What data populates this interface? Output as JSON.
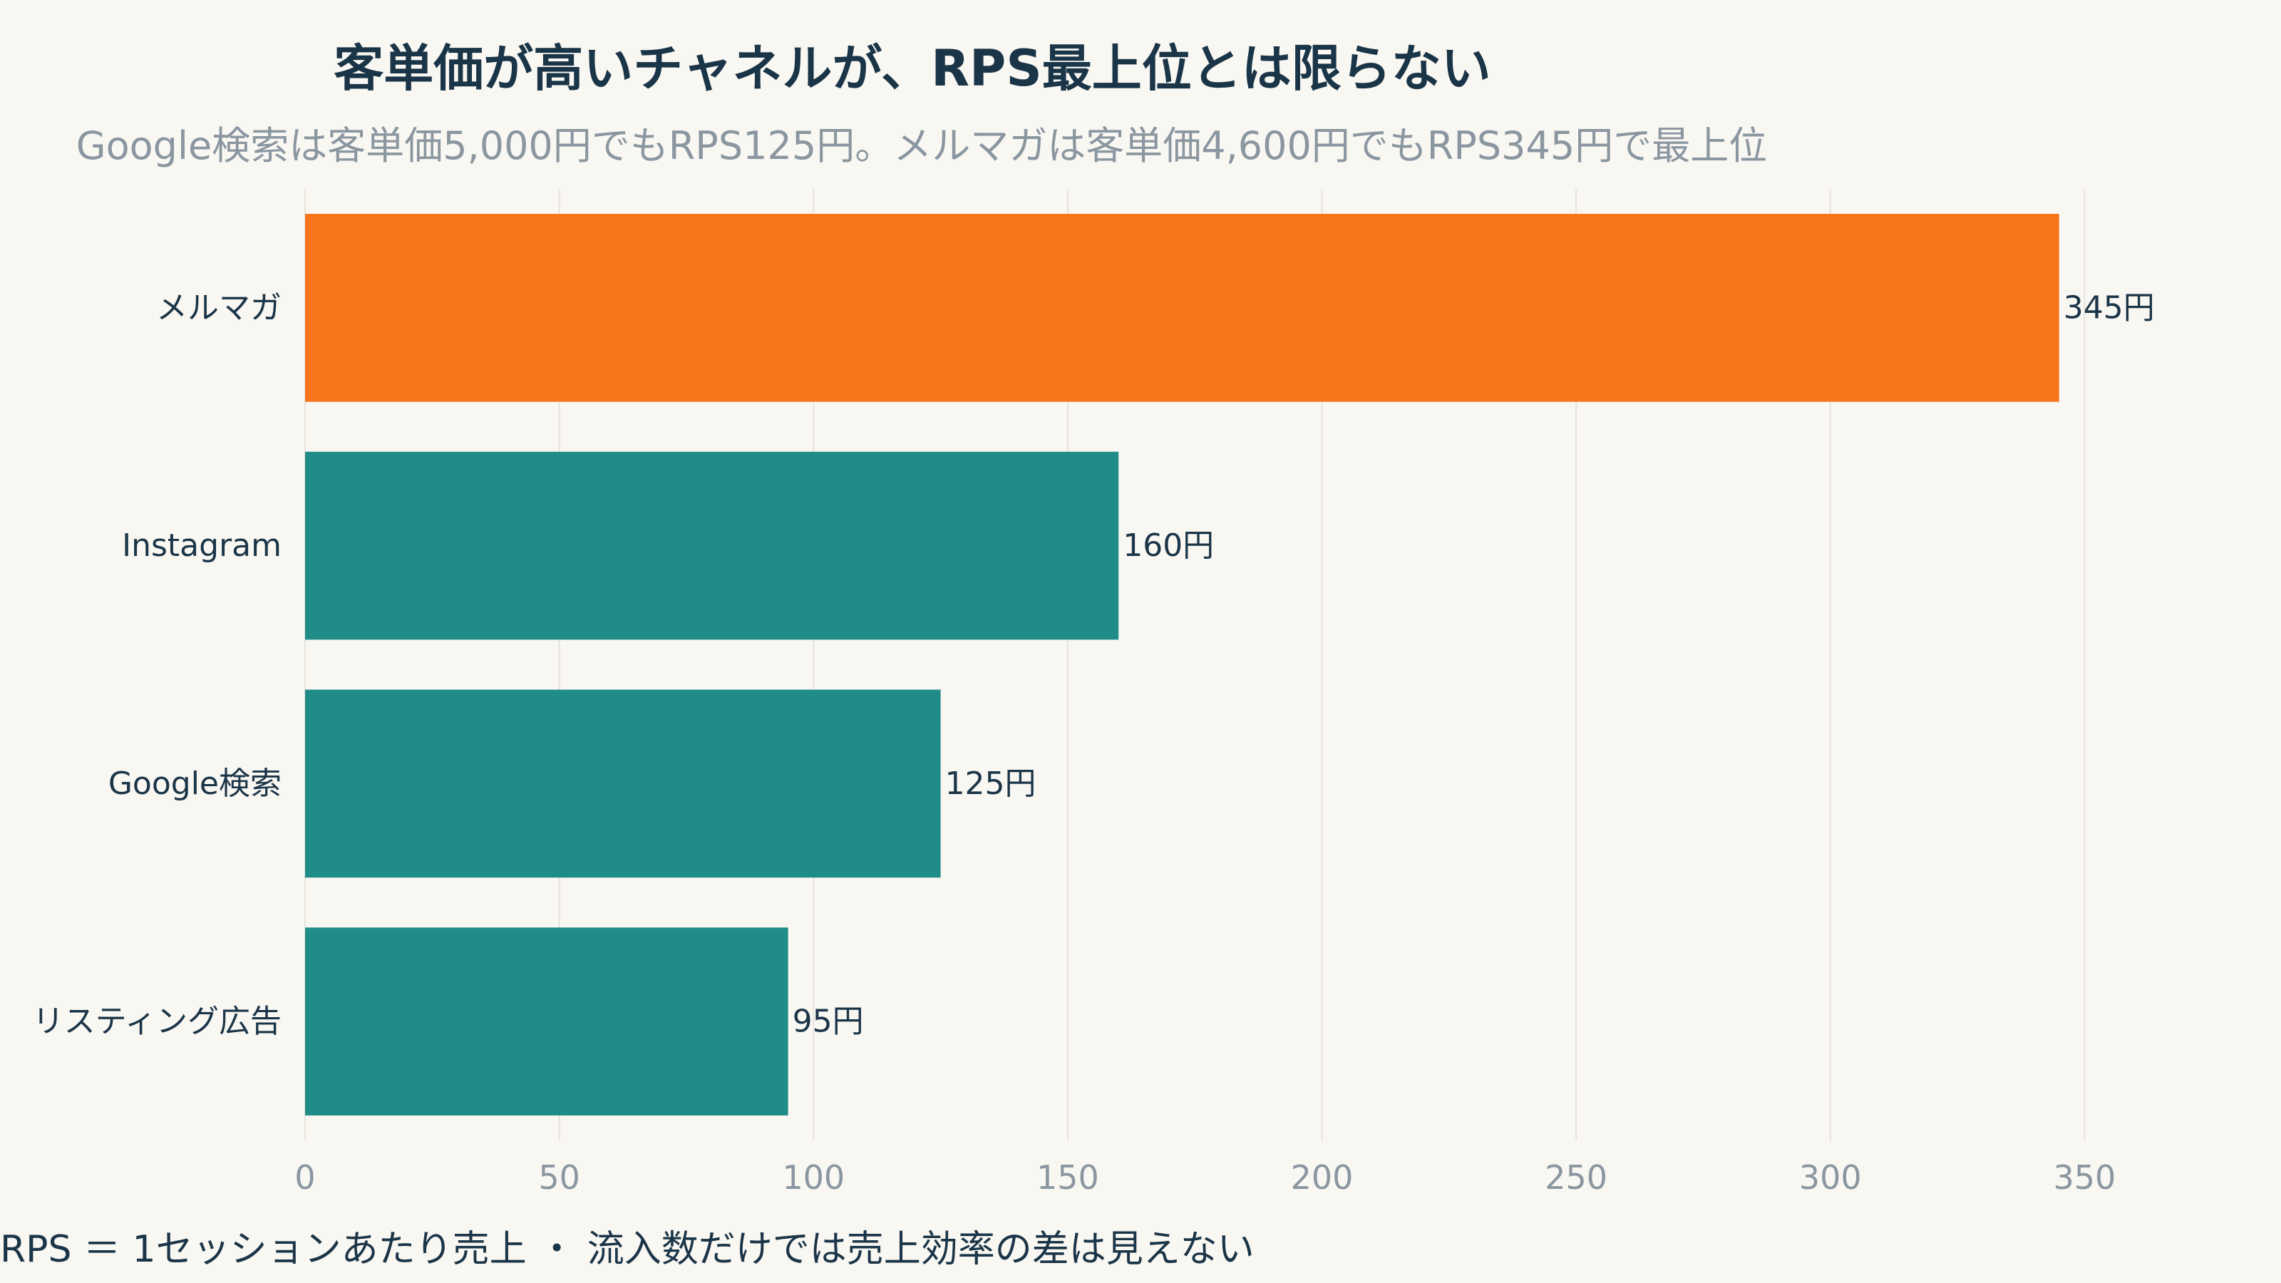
{
  "chart_data": {
    "type": "bar",
    "orientation": "horizontal",
    "title": "客単価が高いチャネルが、RPS最上位とは限らない",
    "subtitle": "Google検索は客単価5,000円でもRPS125円。メルマガは客単価4,600円でもRPS345円で最上位",
    "footnote": "RPS ＝ 1セッションあたり売上 ・ 流入数だけでは売上効率の差は見えない",
    "categories": [
      "メルマガ",
      "Instagram",
      "Google検索",
      "リスティング広告"
    ],
    "values": [
      345,
      160,
      125,
      95
    ],
    "value_labels": [
      "345円",
      "160円",
      "125円",
      "95円"
    ],
    "highlight_index": 0,
    "colors": {
      "highlight": "#f8741a",
      "default": "#1f8c88",
      "grid": "#e6e3dc"
    },
    "xlim": [
      0,
      362
    ],
    "xticks": [
      0,
      50,
      100,
      150,
      200,
      250,
      300,
      350
    ],
    "grid": true,
    "xlabel": "",
    "ylabel": ""
  }
}
